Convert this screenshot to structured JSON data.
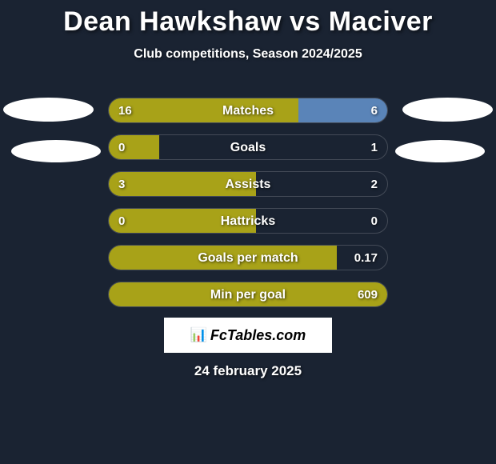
{
  "title": "Dean Hawkshaw vs Maciver",
  "subtitle": "Club competitions, Season 2024/2025",
  "colors": {
    "left_fill": "#a8a218",
    "right_fill": "#5a84b8",
    "background": "#1a2332",
    "badge": "#ffffff",
    "brand_bg": "#ffffff",
    "text": "#ffffff"
  },
  "bars": [
    {
      "label": "Matches",
      "left_val": "16",
      "right_val": "6",
      "left_pct": 68,
      "right_pct": 32
    },
    {
      "label": "Goals",
      "left_val": "0",
      "right_val": "1",
      "left_pct": 18,
      "right_pct": 0
    },
    {
      "label": "Assists",
      "left_val": "3",
      "right_val": "2",
      "left_pct": 53,
      "right_pct": 0
    },
    {
      "label": "Hattricks",
      "left_val": "0",
      "right_val": "0",
      "left_pct": 53,
      "right_pct": 0
    },
    {
      "label": "Goals per match",
      "left_val": "",
      "right_val": "0.17",
      "left_pct": 82,
      "right_pct": 0
    },
    {
      "label": "Min per goal",
      "left_val": "",
      "right_val": "609",
      "left_pct": 100,
      "right_pct": 0
    }
  ],
  "brand": {
    "icon_text": "📊",
    "label": "FcTables.com"
  },
  "date": "24 february 2025"
}
